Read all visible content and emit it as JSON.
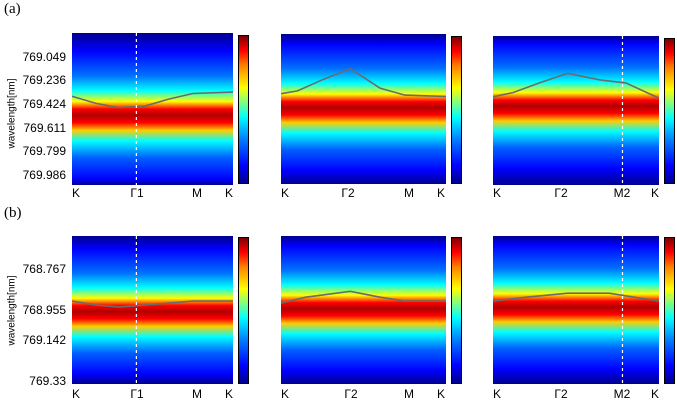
{
  "figure": {
    "row_a_label": "(a)",
    "row_b_label": "(b)",
    "ylabel": "wavelength[nm]",
    "colors": {
      "cold": "#00008f",
      "mid": "#00ffff",
      "hot": "#ff0000",
      "peak_dark": "#7a0000",
      "trace": "#6b6b6b"
    }
  },
  "chart_data": [
    {
      "type": "heatmap",
      "panel": "a-1",
      "xticks": [
        "K",
        "Γ1",
        "M",
        "K"
      ],
      "yticks": [
        "769.049",
        "769.236",
        "769.424",
        "769.611",
        "769.799",
        "769.986"
      ],
      "ylabel": "wavelength[nm]",
      "dashed_marker": "Γ1",
      "trace": [
        [
          0,
          769.4
        ],
        [
          0.15,
          769.45
        ],
        [
          0.29,
          769.48
        ],
        [
          0.45,
          769.47
        ],
        [
          0.6,
          769.42
        ],
        [
          0.75,
          769.38
        ],
        [
          1,
          769.37
        ]
      ]
    },
    {
      "type": "heatmap",
      "panel": "a-2",
      "xticks": [
        "K",
        "Γ2",
        "M",
        "K"
      ],
      "trace": [
        [
          0,
          769.38
        ],
        [
          0.1,
          769.36
        ],
        [
          0.25,
          769.28
        ],
        [
          0.42,
          769.2
        ],
        [
          0.6,
          769.34
        ],
        [
          0.75,
          769.39
        ],
        [
          1,
          769.4
        ]
      ]
    },
    {
      "type": "heatmap",
      "panel": "a-3",
      "xticks": [
        "K",
        "Γ2",
        "M2",
        "K"
      ],
      "dashed_marker": "M2",
      "trace": [
        [
          0,
          769.39
        ],
        [
          0.12,
          769.36
        ],
        [
          0.28,
          769.29
        ],
        [
          0.45,
          769.22
        ],
        [
          0.65,
          769.27
        ],
        [
          0.8,
          769.29
        ],
        [
          1,
          769.4
        ]
      ]
    },
    {
      "type": "heatmap",
      "panel": "b-1",
      "xticks": [
        "K",
        "Γ1",
        "M",
        "K"
      ],
      "yticks": [
        "768.767",
        "768.955",
        "769.142",
        "769.33"
      ],
      "ylabel": "wavelength[nm]",
      "dashed_marker": "Γ1",
      "trace": [
        [
          0,
          768.95
        ],
        [
          0.15,
          768.97
        ],
        [
          0.29,
          768.98
        ],
        [
          0.45,
          768.97
        ],
        [
          0.6,
          768.96
        ],
        [
          0.75,
          768.95
        ],
        [
          1,
          768.95
        ]
      ]
    },
    {
      "type": "heatmap",
      "panel": "b-2",
      "xticks": [
        "K",
        "Γ2",
        "M",
        "K"
      ],
      "trace": [
        [
          0,
          768.96
        ],
        [
          0.15,
          768.93
        ],
        [
          0.42,
          768.9
        ],
        [
          0.6,
          768.93
        ],
        [
          0.75,
          768.95
        ],
        [
          1,
          768.95
        ]
      ]
    },
    {
      "type": "heatmap",
      "panel": "b-3",
      "xticks": [
        "K",
        "Γ2",
        "M2",
        "K"
      ],
      "dashed_marker": "M2",
      "trace": [
        [
          0,
          768.95
        ],
        [
          0.2,
          768.93
        ],
        [
          0.45,
          768.91
        ],
        [
          0.7,
          768.91
        ],
        [
          0.85,
          768.93
        ],
        [
          1,
          768.95
        ]
      ]
    }
  ]
}
